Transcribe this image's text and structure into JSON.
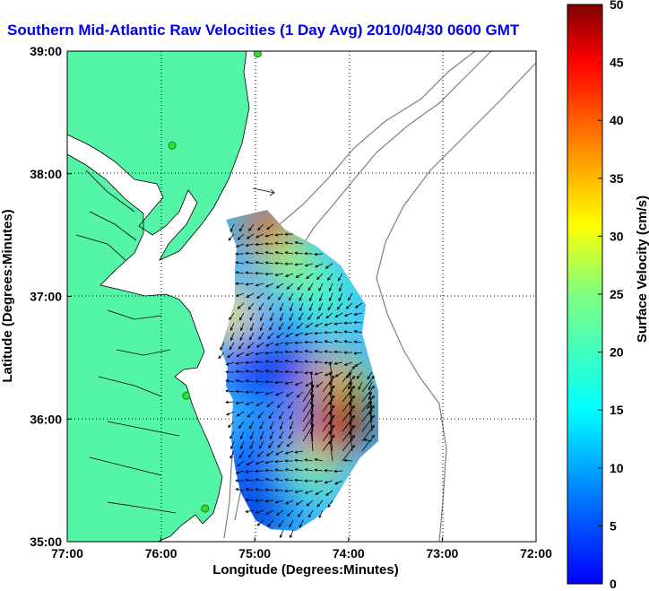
{
  "chart_data": {
    "type": "heatmap",
    "title": "Southern Mid-Atlantic Raw Velocities (1 Day Avg) 2010/04/30 0600 GMT",
    "xlabel": "Longitude (Degrees:Minutes)",
    "ylabel": "Latitude (Degrees:Minutes)",
    "colorbar_label": "Surface Velocity (cm/s)",
    "x_ticks": [
      "77:00",
      "76:00",
      "75:00",
      "74:00",
      "73:00",
      "72:00"
    ],
    "x_tick_values": [
      -77,
      -76,
      -75,
      -74,
      -73,
      -72
    ],
    "y_ticks": [
      "39:00",
      "38:00",
      "37:00",
      "36:00",
      "35:00"
    ],
    "y_tick_values": [
      39,
      38,
      37,
      36,
      35
    ],
    "xlim": [
      -77,
      -72
    ],
    "ylim": [
      35,
      39
    ],
    "colorbar_ticks": [
      0,
      5,
      10,
      15,
      20,
      25,
      30,
      35,
      40,
      45,
      50
    ],
    "colorbar_range": [
      0,
      50
    ],
    "colormap": "jet",
    "grid": "dotted",
    "land_color": "#55f5a8",
    "station_color": "#33dd33",
    "stations": [
      {
        "lon": -74.97,
        "lat": 38.98
      },
      {
        "lon": -75.88,
        "lat": 38.23
      },
      {
        "lon": -75.73,
        "lat": 36.19
      },
      {
        "lon": -75.53,
        "lat": 35.27
      }
    ],
    "speed_field": [
      {
        "lon": -74.85,
        "lat": 37.55,
        "speed": 40
      },
      {
        "lon": -74.6,
        "lat": 37.25,
        "speed": 26
      },
      {
        "lon": -74.25,
        "lat": 37.0,
        "speed": 22
      },
      {
        "lon": -75.15,
        "lat": 36.95,
        "speed": 10
      },
      {
        "lon": -75.3,
        "lat": 36.85,
        "speed": 32
      },
      {
        "lon": -74.75,
        "lat": 36.75,
        "speed": 14
      },
      {
        "lon": -74.6,
        "lat": 36.4,
        "speed": 5
      },
      {
        "lon": -75.1,
        "lat": 36.45,
        "speed": 8
      },
      {
        "lon": -74.15,
        "lat": 36.3,
        "speed": 35
      },
      {
        "lon": -74.05,
        "lat": 36.0,
        "speed": 50
      },
      {
        "lon": -74.3,
        "lat": 35.8,
        "speed": 44
      },
      {
        "lon": -74.8,
        "lat": 35.95,
        "speed": 12
      },
      {
        "lon": -75.05,
        "lat": 35.6,
        "speed": 9
      },
      {
        "lon": -74.45,
        "lat": 35.55,
        "speed": 24
      },
      {
        "lon": -74.7,
        "lat": 35.3,
        "speed": 13
      },
      {
        "lon": -75.0,
        "lat": 35.2,
        "speed": 4
      }
    ]
  }
}
